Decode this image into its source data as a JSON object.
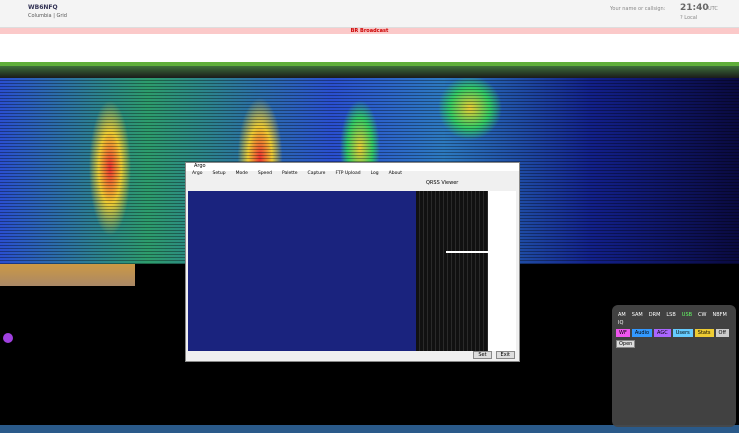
{
  "header": {
    "title": "WB6NFQ",
    "subtitle": "Columbia | Grid",
    "name_label": "Your name or callsign:",
    "time": "21:40",
    "time_zone": "UTC",
    "local": "? Local"
  },
  "banner": "BR Broadcast",
  "popup": {
    "title": "Argo",
    "menu": [
      "Argo",
      "Setup",
      "Mode",
      "Speed",
      "Palette",
      "Capture",
      "FTP Upload",
      "Log",
      "About"
    ],
    "status": "QRSS Viewer",
    "buttons": [
      "Set",
      "Exit"
    ]
  },
  "panel": {
    "modes": [
      "AM",
      "SAM",
      "DRM",
      "LSB",
      "USB",
      "CW",
      "NBFM",
      "IQ"
    ],
    "tabs": [
      "WF",
      "Audio",
      "AGC",
      "Users",
      "Stats",
      "Off"
    ],
    "open": "Open"
  }
}
